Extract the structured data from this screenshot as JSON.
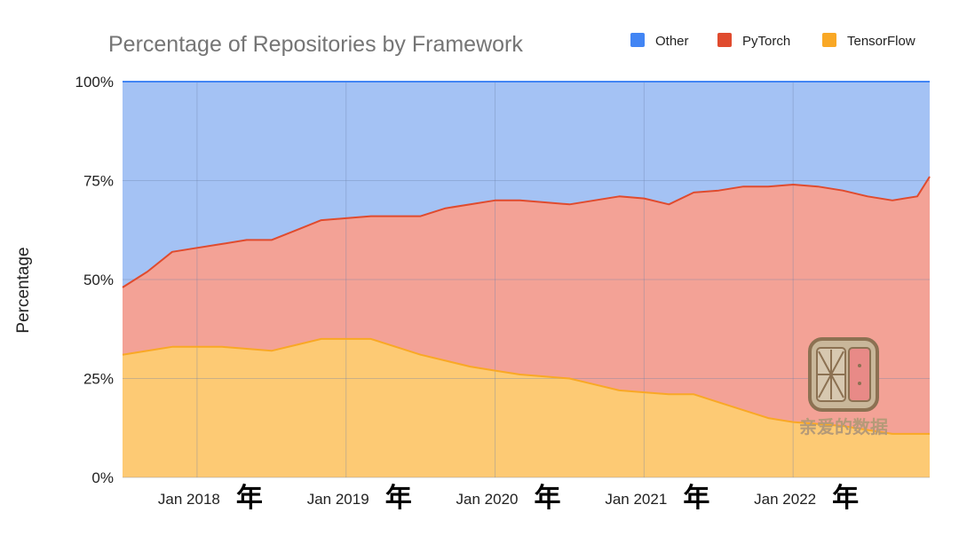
{
  "chart_data": {
    "type": "area",
    "stacked": true,
    "normalized": true,
    "title": "Percentage of Repositories by Framework",
    "ylabel": "Percentage",
    "xlabel": "",
    "ylim": [
      0,
      100
    ],
    "y_ticks": [
      "0%",
      "25%",
      "50%",
      "75%",
      "100%"
    ],
    "x_ticks": [
      "Jan 2018",
      "Jan 2019",
      "Jan 2020",
      "Jan 2021",
      "Jan 2022"
    ],
    "x_tick_suffix": "年",
    "x_range": [
      "2017-07",
      "2022-12"
    ],
    "legend_position": "top-right",
    "grid": true,
    "x": [
      "2017-07",
      "2017-09",
      "2017-11",
      "2018-01",
      "2018-03",
      "2018-05",
      "2018-07",
      "2018-09",
      "2018-11",
      "2019-01",
      "2019-03",
      "2019-05",
      "2019-07",
      "2019-09",
      "2019-11",
      "2020-01",
      "2020-03",
      "2020-05",
      "2020-07",
      "2020-09",
      "2020-11",
      "2021-01",
      "2021-03",
      "2021-05",
      "2021-07",
      "2021-09",
      "2021-11",
      "2022-01",
      "2022-03",
      "2022-05",
      "2022-07",
      "2022-09",
      "2022-11",
      "2022-12"
    ],
    "series": [
      {
        "name": "TensorFlow",
        "color": "#f9a825",
        "fill": "#fdca74",
        "values": [
          31,
          32,
          33,
          33,
          33,
          32.5,
          32,
          33.5,
          35,
          35,
          35,
          33,
          31,
          29.5,
          28,
          27,
          26,
          25.5,
          25,
          23.5,
          22,
          21.5,
          21,
          21,
          19,
          17,
          15,
          14,
          13.5,
          13,
          12,
          11,
          11,
          11
        ]
      },
      {
        "name": "PyTorch",
        "color": "#e04b2e",
        "fill": "#f3a296",
        "values": [
          17,
          20,
          24,
          25,
          26,
          27.5,
          28,
          29,
          30,
          30.5,
          31,
          33,
          35,
          38.5,
          41,
          43,
          44,
          44,
          44,
          46.5,
          49,
          49,
          48,
          51,
          53.5,
          56.5,
          58.5,
          60,
          60,
          59.5,
          59,
          59,
          60,
          65
        ]
      },
      {
        "name": "Other",
        "color": "#4285f4",
        "fill": "#a4c2f4",
        "values": [
          52,
          48,
          43,
          42,
          41,
          40,
          40,
          37.5,
          35,
          34.5,
          34,
          34,
          34,
          32,
          31,
          30,
          30,
          30.5,
          31,
          30,
          29,
          29.5,
          31,
          28,
          27.5,
          26.5,
          26.5,
          26,
          26.5,
          27.5,
          29,
          30,
          29,
          24
        ]
      }
    ]
  },
  "watermark": {
    "text": "亲爱的数据",
    "icon": "fan-window-logo-icon"
  }
}
